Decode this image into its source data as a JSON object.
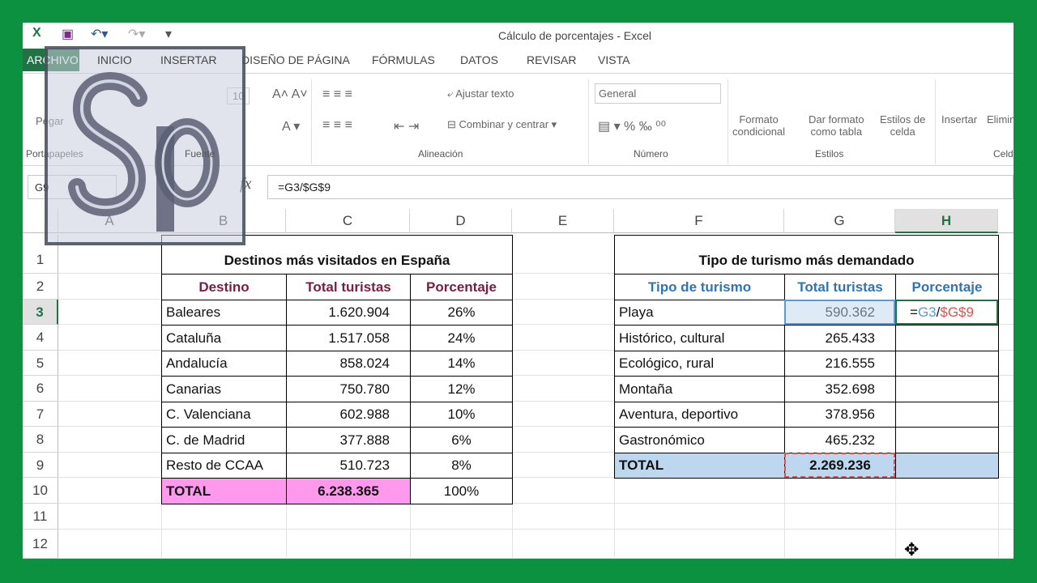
{
  "window": {
    "title": "Cálculo de porcentajes - Excel",
    "quick_access": [
      "excel-logo-icon",
      "save-icon",
      "undo-icon",
      "redo-icon",
      "customize-icon"
    ]
  },
  "tabs": [
    "ARCHIVO",
    "INICIO",
    "INSERTAR",
    "DISEÑO DE PÁGINA",
    "FÓRMULAS",
    "DATOS",
    "REVISAR",
    "VISTA"
  ],
  "ribbon": {
    "paste": "Pegar",
    "font_size": "10",
    "wrap_text": "Ajustar texto",
    "merge_center": "Combinar y centrar",
    "number_format": "General",
    "cond_format": [
      "Formato",
      "condicional"
    ],
    "format_table": [
      "Dar formato",
      "como tabla"
    ],
    "cell_styles": [
      "Estilos de",
      "celda"
    ],
    "insert": "Insertar",
    "delete": "Elimin",
    "groups": [
      "Portapapeles",
      "Fuente",
      "Alineación",
      "Número",
      "Estilos",
      "Celd"
    ]
  },
  "formula_bar": {
    "name_box": "G9",
    "fx": "fx",
    "formula": "=G3/$G$9"
  },
  "logo": "Sp",
  "columns": [
    "A",
    "B",
    "C",
    "D",
    "E",
    "F",
    "G",
    "H"
  ],
  "rows": [
    "1",
    "2",
    "3",
    "4",
    "5",
    "6",
    "7",
    "8",
    "9",
    "10",
    "11",
    "12"
  ],
  "selected": {
    "column": "H",
    "row": "3"
  },
  "left_table": {
    "title": "Destinos más visitados en España",
    "headers": [
      "Destino",
      "Total turistas",
      "Porcentaje"
    ],
    "rows": [
      [
        "Baleares",
        "1.620.904",
        "26%"
      ],
      [
        "Cataluña",
        "1.517.058",
        "24%"
      ],
      [
        "Andalucía",
        "858.024",
        "14%"
      ],
      [
        "Canarias",
        "750.780",
        "12%"
      ],
      [
        "C. Valenciana",
        "602.988",
        "10%"
      ],
      [
        "C. de Madrid",
        "377.888",
        "6%"
      ],
      [
        "Resto de CCAA",
        "510.723",
        "8%"
      ]
    ],
    "total": [
      "TOTAL",
      "6.238.365",
      "100%"
    ]
  },
  "right_table": {
    "title": "Tipo de turismo más demandado",
    "headers": [
      "Tipo de turismo",
      "Total turistas",
      "Porcentaje"
    ],
    "rows": [
      [
        "Playa",
        "590.362",
        ""
      ],
      [
        "Histórico, cultural",
        "265.433",
        ""
      ],
      [
        "Ecológico, rural",
        "216.555",
        ""
      ],
      [
        "Montaña",
        "352.698",
        ""
      ],
      [
        "Aventura, deportivo",
        "378.956",
        ""
      ],
      [
        "Gastronómico",
        "465.232",
        ""
      ]
    ],
    "total": [
      "TOTAL",
      "2.269.236",
      ""
    ]
  },
  "editing": {
    "eq": "=",
    "ref1": "G3",
    "slash": "/",
    "ref2": "$G$9"
  },
  "colors": {
    "left_header": "#7b1c45",
    "right_header": "#2e75b6",
    "left_total": "#ff99ee",
    "right_total": "#bdd7ee",
    "excel_green": "#217346"
  }
}
